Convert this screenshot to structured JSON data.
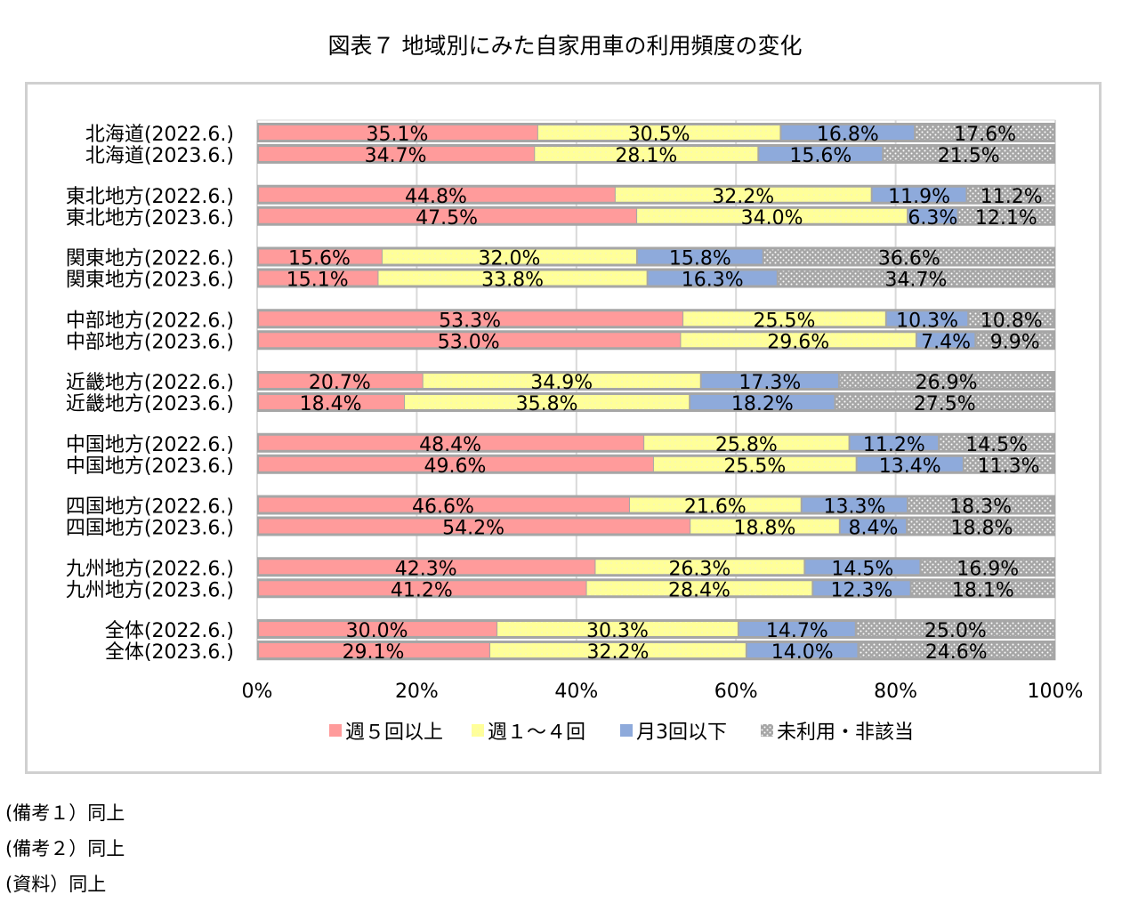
{
  "title": "図表７ 地域別にみた自家用車の利用頻度の変化",
  "notes": [
    "(備考１）同上",
    "(備考２）同上",
    "(資料）同上"
  ],
  "chart_data": {
    "type": "bar",
    "orientation": "horizontal",
    "stacked": "percent",
    "xlim": [
      0,
      100
    ],
    "xticks": [
      "0%",
      "20%",
      "40%",
      "60%",
      "80%",
      "100%"
    ],
    "grid": true,
    "legend": "bottom",
    "categories": [
      "北海道(2022.6.)",
      "北海道(2023.6.)",
      "東北地方(2022.6.)",
      "東北地方(2023.6.)",
      "関東地方(2022.6.)",
      "関東地方(2023.6.)",
      "中部地方(2022.6.)",
      "中部地方(2023.6.)",
      "近畿地方(2022.6.)",
      "近畿地方(2023.6.)",
      "中国地方(2022.6.)",
      "中国地方(2023.6.)",
      "四国地方(2022.6.)",
      "四国地方(2023.6.)",
      "九州地方(2022.6.)",
      "九州地方(2023.6.)",
      "全体(2022.6.)",
      "全体(2023.6.)"
    ],
    "series": [
      {
        "name": "週５回以上",
        "color": "#ff9b9b",
        "values": [
          35.1,
          34.7,
          44.8,
          47.5,
          15.6,
          15.1,
          53.3,
          53.0,
          20.7,
          18.4,
          48.4,
          49.6,
          46.6,
          54.2,
          42.3,
          41.2,
          30.0,
          29.1
        ]
      },
      {
        "name": "週１～４回",
        "color": "#ffff99",
        "values": [
          30.5,
          28.1,
          32.2,
          34.0,
          32.0,
          33.8,
          25.5,
          29.6,
          34.9,
          35.8,
          25.8,
          25.5,
          21.6,
          18.8,
          26.3,
          28.4,
          30.3,
          32.2
        ]
      },
      {
        "name": "月3回以下",
        "color": "#8eaadb",
        "values": [
          16.8,
          15.6,
          11.9,
          6.3,
          15.8,
          16.3,
          10.3,
          7.4,
          17.3,
          18.2,
          11.2,
          13.4,
          13.3,
          8.4,
          14.5,
          12.3,
          14.7,
          14.0
        ]
      },
      {
        "name": "未利用・非該当",
        "color": "#a6a6a6",
        "values": [
          17.6,
          21.5,
          11.2,
          12.1,
          36.6,
          34.7,
          10.8,
          9.9,
          26.9,
          27.5,
          14.5,
          11.3,
          18.3,
          18.8,
          16.9,
          18.1,
          25.0,
          24.6
        ]
      }
    ]
  }
}
